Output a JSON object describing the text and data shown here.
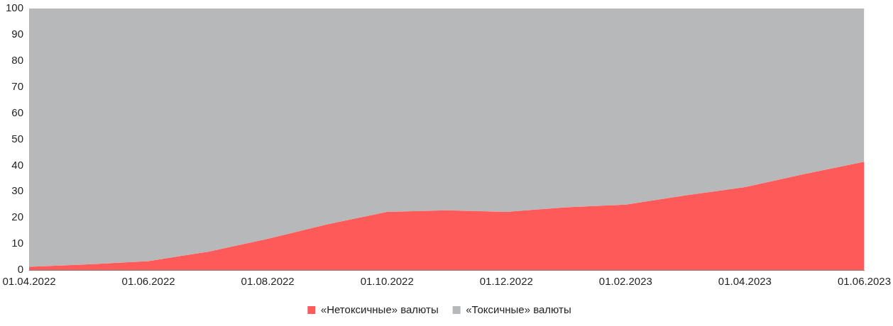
{
  "chart_data": {
    "type": "area",
    "stacked": true,
    "categories": [
      "01.04.2022",
      null,
      "01.06.2022",
      null,
      "01.08.2022",
      null,
      "01.10.2022",
      null,
      "01.12.2022",
      null,
      "01.02.2023",
      null,
      "01.04.2023",
      null,
      "01.06.2023"
    ],
    "series": [
      {
        "name": "«Нетоксичные» валюты",
        "color": "#ff5a5a",
        "values": [
          1.2,
          2.2,
          3.4,
          7,
          11.9,
          17.5,
          22.2,
          22.8,
          22.2,
          24,
          25,
          28.5,
          31.7,
          36.7,
          41.4
        ]
      },
      {
        "name": "«Токсичные» валюты",
        "color": "#b7b8ba",
        "values": [
          98.8,
          97.8,
          96.6,
          93,
          88.1,
          82.5,
          77.8,
          77.2,
          77.8,
          76,
          75,
          71.5,
          68.3,
          63.3,
          58.6
        ]
      }
    ],
    "ylim": [
      0,
      100
    ],
    "yticks": [
      0,
      10,
      20,
      30,
      40,
      50,
      60,
      70,
      80,
      90,
      100
    ],
    "grid": false,
    "legend": "bottom"
  }
}
